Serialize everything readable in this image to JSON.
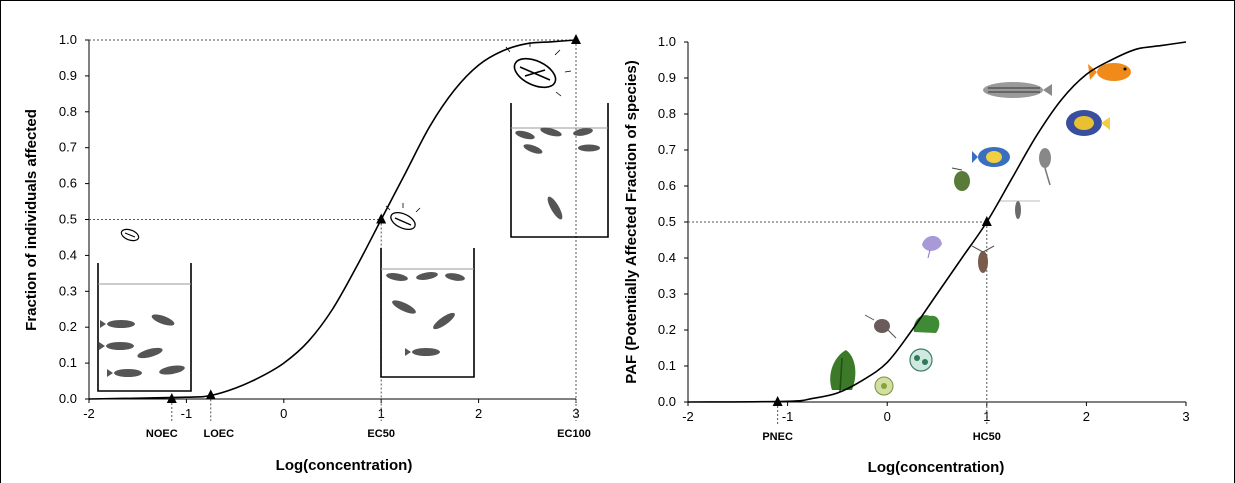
{
  "colors": {
    "curve": "#000000",
    "fish": "#555555",
    "algae_green": "#3c7a2a",
    "goldfish": "#f08a1a",
    "angelfish": "#3a6fc0"
  },
  "icons": [
    "fish-icon",
    "dead-fish-icon",
    "beaker-icon",
    "zebrafish-icon",
    "goldfish-icon",
    "angelfish-icon",
    "tropical-fish-icon",
    "daphnia-icon",
    "algae-icon",
    "moss-icon",
    "protozoa-icon",
    "copepod-icon",
    "jellyfish-icon"
  ],
  "chart_data": [
    {
      "type": "line",
      "ylabel": "Fraction of individuals affected",
      "xlabel": "Log(concentration)",
      "xlim": [
        -2,
        3
      ],
      "ylim": [
        0,
        1
      ],
      "xticks": [
        "-2",
        "-1",
        "0",
        "1",
        "2",
        "3"
      ],
      "yticks": [
        "0.0",
        "0.1",
        "0.2",
        "0.3",
        "0.4",
        "0.5",
        "0.6",
        "0.7",
        "0.8",
        "0.9",
        "1.0"
      ],
      "curve": {
        "x": [
          -2,
          -1.0,
          -0.75,
          -0.5,
          -0.25,
          0,
          0.25,
          0.5,
          0.75,
          1.0,
          1.25,
          1.5,
          1.75,
          2.0,
          2.25,
          2.5,
          2.75,
          3.0
        ],
        "y": [
          0,
          0.005,
          0.01,
          0.03,
          0.06,
          0.1,
          0.16,
          0.25,
          0.37,
          0.5,
          0.63,
          0.76,
          0.86,
          0.93,
          0.97,
          0.99,
          0.995,
          1.0
        ]
      },
      "points": [
        {
          "x": -1.15,
          "y": 0.0
        },
        {
          "x": -0.75,
          "y": 0.01
        },
        {
          "x": 1.0,
          "y": 0.5
        },
        {
          "x": 3.0,
          "y": 1.0
        }
      ],
      "annotations": [
        "NOEC",
        "LOEC",
        "EC50",
        "EC100"
      ],
      "grid": false
    },
    {
      "type": "line",
      "ylabel": "PAF (Potentially Affected Fraction of species)",
      "xlabel": "Log(concentration)",
      "xlim": [
        -2,
        3
      ],
      "ylim": [
        0,
        1
      ],
      "xticks": [
        "-2",
        "-1",
        "0",
        "1",
        "2",
        "3"
      ],
      "yticks": [
        "0.0",
        "0.1",
        "0.2",
        "0.3",
        "0.4",
        "0.5",
        "0.6",
        "0.7",
        "0.8",
        "0.9",
        "1.0"
      ],
      "curve": {
        "x": [
          -2,
          -1.0,
          -0.75,
          -0.5,
          -0.25,
          0,
          0.25,
          0.5,
          0.75,
          1.0,
          1.25,
          1.5,
          1.75,
          2.0,
          2.25,
          2.5,
          2.75,
          3.0
        ],
        "y": [
          0,
          0.002,
          0.01,
          0.025,
          0.06,
          0.11,
          0.2,
          0.3,
          0.4,
          0.5,
          0.62,
          0.74,
          0.84,
          0.91,
          0.95,
          0.98,
          0.99,
          1.0
        ]
      },
      "points": [
        {
          "x": -1.1,
          "y": 0.0
        },
        {
          "x": 1.0,
          "y": 0.5
        }
      ],
      "annotations": [
        "PNEC",
        "HC50"
      ],
      "grid": false
    }
  ]
}
